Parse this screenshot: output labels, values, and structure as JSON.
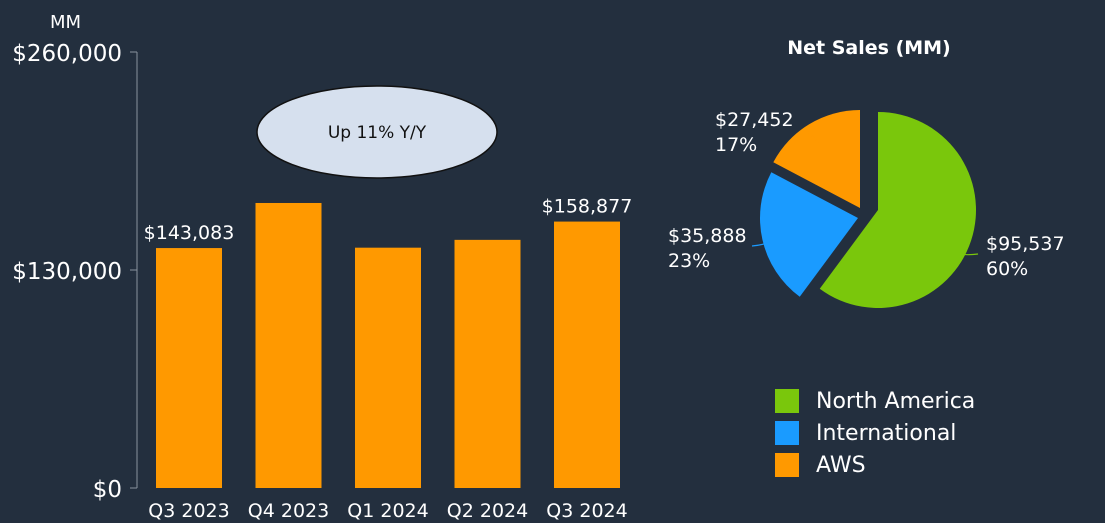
{
  "chart_data": [
    {
      "type": "bar",
      "ylabel": "MM",
      "ylim": [
        0,
        260000
      ],
      "yticks": [
        {
          "value": 0,
          "label": "$0"
        },
        {
          "value": 130000,
          "label": "$130,000"
        },
        {
          "value": 260000,
          "label": "$260,000"
        }
      ],
      "categories": [
        "Q3 2023",
        "Q4 2023",
        "Q1 2024",
        "Q2 2024",
        "Q3 2024"
      ],
      "values": [
        143083,
        169961,
        143313,
        147977,
        158877
      ],
      "data_labels": [
        "$143,083",
        "",
        "",
        "",
        "$158,877"
      ],
      "bar_color": "#ff9900",
      "grid": false,
      "annotation": "Up 11% Y/Y"
    },
    {
      "type": "pie",
      "title": "Net Sales (MM)",
      "slices": [
        {
          "name": "North America",
          "value": 95537,
          "label": "$95,537",
          "percent": "60%",
          "color": "#7ac70c",
          "icon": "green-square-icon"
        },
        {
          "name": "International",
          "value": 35888,
          "label": "$35,888",
          "percent": "23%",
          "color": "#1a9bff",
          "icon": "blue-square-icon"
        },
        {
          "name": "AWS",
          "value": 27452,
          "label": "$27,452",
          "percent": "17%",
          "color": "#ff9900",
          "icon": "orange-square-icon"
        }
      ],
      "legend_position": "bottom-right"
    }
  ]
}
